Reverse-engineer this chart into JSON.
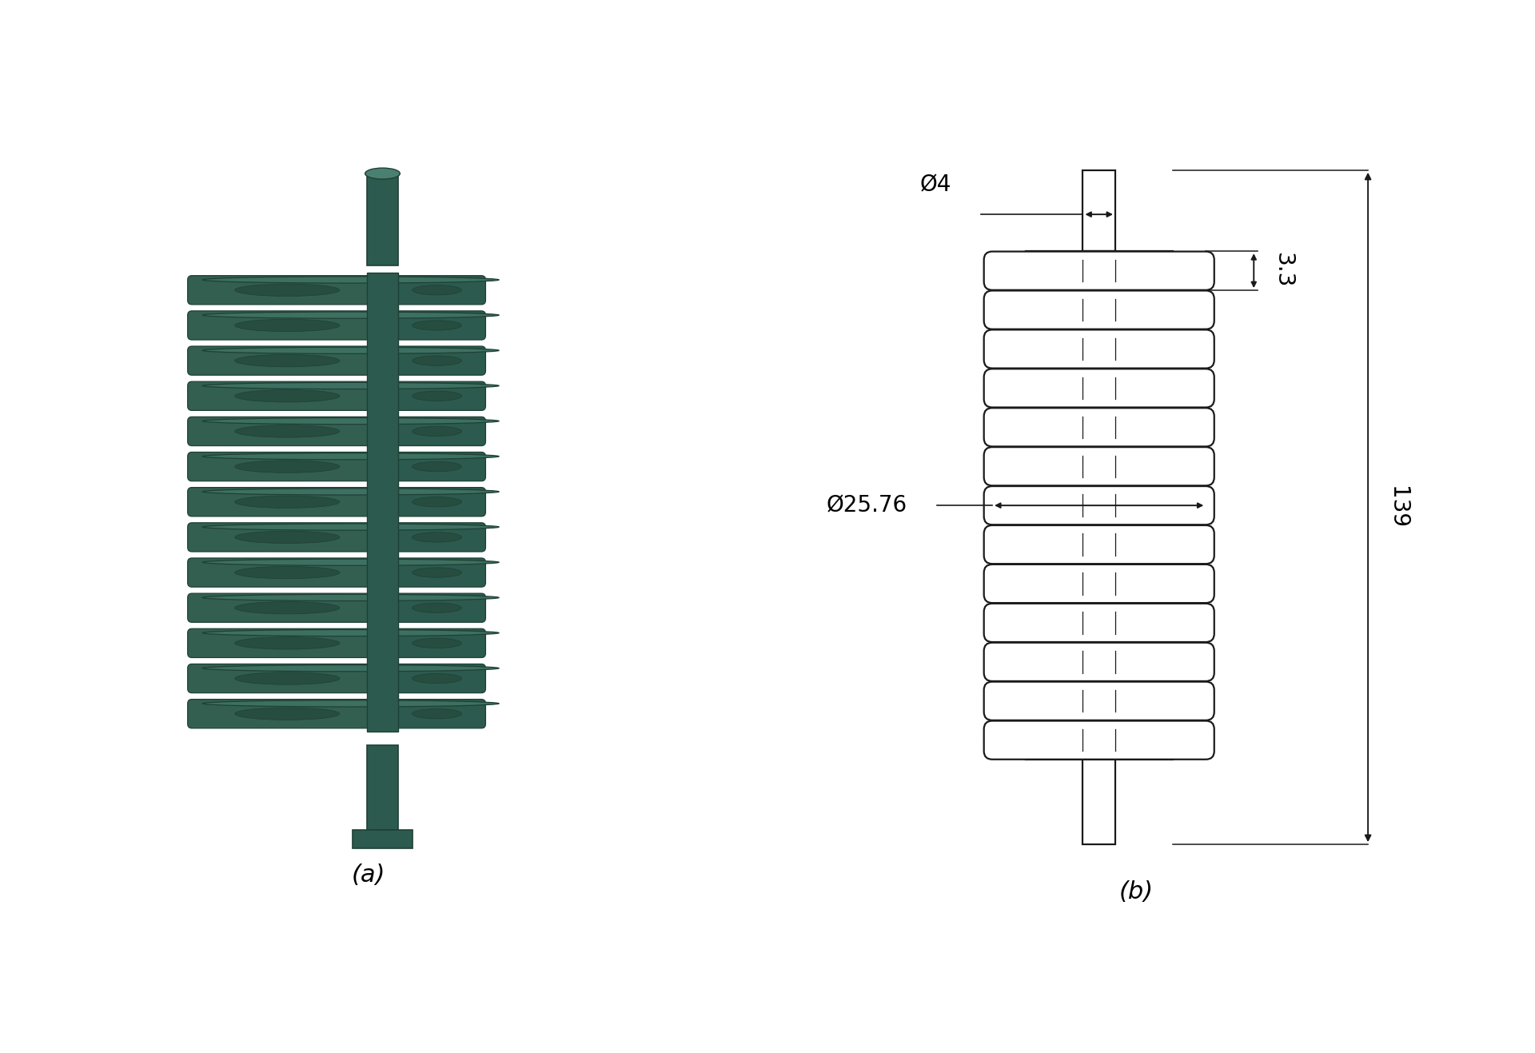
{
  "fig_width": 19.2,
  "fig_height": 13.17,
  "bg_color": "#ffffff",
  "label_a": "(a)",
  "label_b": "(b)",
  "dim_d4": "Ø4",
  "dim_d25": "Ø25.76",
  "dim_33": "3.3",
  "dim_139": "139",
  "line_color": "#1a1a1a",
  "shaft_dark": "#1e4035",
  "shaft_mid": "#2d5a4e",
  "shaft_light": "#3d7060",
  "shaft_highlight": "#4a8070",
  "disk_face": "#2d5a4e",
  "disk_top": "#3d7060",
  "disk_dark": "#1e4035",
  "n_disks": 13,
  "label_fontsize": 22,
  "dim_fontsize": 20
}
